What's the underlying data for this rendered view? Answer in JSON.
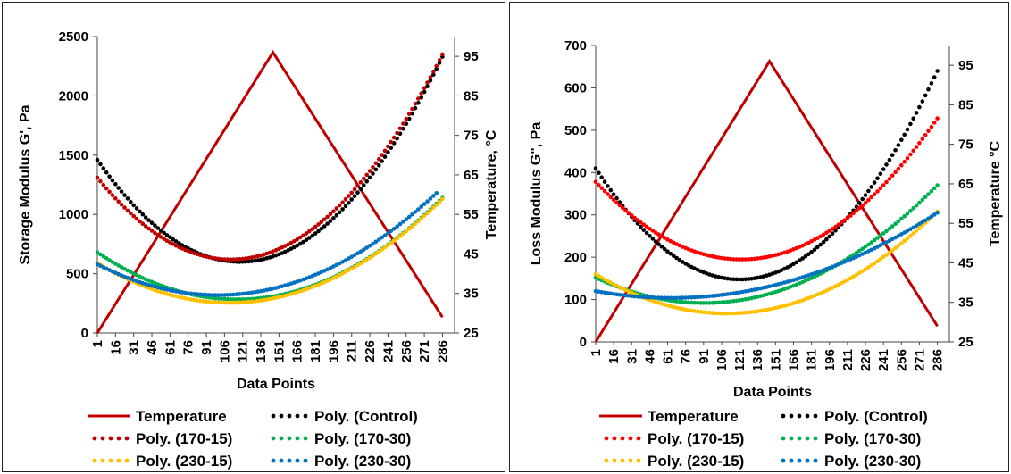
{
  "chart_data": [
    {
      "type": "line",
      "xlabel": "Data Points",
      "ylabel": "Storage Modulus G', Pa",
      "y2label": "Temperature, °C",
      "ylim": [
        0,
        2500
      ],
      "yticks": [
        0,
        500,
        1000,
        1500,
        2000,
        2500
      ],
      "y2lim": [
        25,
        100
      ],
      "y2ticks": [
        25,
        35,
        45,
        55,
        65,
        75,
        85,
        95
      ],
      "xlim": [
        1,
        296
      ],
      "xticks": [
        1,
        16,
        31,
        46,
        61,
        76,
        91,
        106,
        121,
        136,
        151,
        166,
        181,
        196,
        211,
        226,
        241,
        256,
        271,
        286
      ],
      "legend": "bottom",
      "series": [
        {
          "name": "Temperature",
          "axis": "right",
          "style": "solid",
          "color": "#C00000",
          "points": [
            [
              1,
              25
            ],
            [
              146,
              96
            ],
            [
              286,
              29
            ]
          ]
        },
        {
          "name": "Poly. (Control)",
          "axis": "left",
          "style": "dotted",
          "color": "#000000",
          "points": [
            [
              1,
              1460
            ],
            [
              121,
              600
            ],
            [
              286,
              2330
            ]
          ]
        },
        {
          "name": "Poly. (170-15)",
          "axis": "left",
          "style": "dotted",
          "color": "#C00000",
          "points": [
            [
              1,
              1310
            ],
            [
              111,
              620
            ],
            [
              286,
              2350
            ]
          ]
        },
        {
          "name": "Poly. (170-30)",
          "axis": "left",
          "style": "dotted",
          "color": "#00B050",
          "points": [
            [
              1,
              680
            ],
            [
              101,
              290
            ],
            [
              286,
              1140
            ]
          ]
        },
        {
          "name": "Poly. (230-15)",
          "axis": "left",
          "style": "dotted",
          "color": "#FFC000",
          "points": [
            [
              1,
              590
            ],
            [
              106,
              255
            ],
            [
              286,
              1130
            ]
          ]
        },
        {
          "name": "Poly. (230-30)",
          "axis": "left",
          "style": "dotted",
          "color": "#0070C0",
          "points": [
            [
              1,
              580
            ],
            [
              96,
              320
            ],
            [
              281,
              1180
            ]
          ]
        }
      ]
    },
    {
      "type": "line",
      "xlabel": "Data Points",
      "ylabel": "Loss Modulus G\", Pa",
      "y2label": "Temperature °C",
      "ylim": [
        0,
        700
      ],
      "yticks": [
        0,
        100,
        200,
        300,
        400,
        500,
        600,
        700
      ],
      "y2lim": [
        25,
        100
      ],
      "y2ticks": [
        25,
        35,
        45,
        55,
        65,
        75,
        85,
        95
      ],
      "xlim": [
        1,
        296
      ],
      "xticks": [
        1,
        16,
        31,
        46,
        61,
        76,
        91,
        106,
        121,
        136,
        151,
        166,
        181,
        196,
        211,
        226,
        241,
        256,
        271,
        286
      ],
      "legend": "bottom",
      "series": [
        {
          "name": "Temperature",
          "axis": "right",
          "style": "solid",
          "color": "#C00000",
          "points": [
            [
              1,
              25
            ],
            [
              146,
              96
            ],
            [
              286,
              29
            ]
          ]
        },
        {
          "name": "Poly. (Control)",
          "axis": "left",
          "style": "dotted",
          "color": "#000000",
          "points": [
            [
              1,
              410
            ],
            [
              126,
              148
            ],
            [
              286,
              640
            ]
          ]
        },
        {
          "name": "Poly. (170-15)",
          "axis": "left",
          "style": "dotted",
          "color": "#FF0000",
          "points": [
            [
              1,
              378
            ],
            [
              126,
              195
            ],
            [
              286,
              528
            ]
          ]
        },
        {
          "name": "Poly. (170-30)",
          "axis": "left",
          "style": "dotted",
          "color": "#00B050",
          "points": [
            [
              1,
              152
            ],
            [
              96,
              92
            ],
            [
              286,
              370
            ]
          ]
        },
        {
          "name": "Poly. (230-15)",
          "axis": "left",
          "style": "dotted",
          "color": "#FFC000",
          "points": [
            [
              1,
              160
            ],
            [
              121,
              68
            ],
            [
              286,
              308
            ]
          ]
        },
        {
          "name": "Poly. (230-30)",
          "axis": "left",
          "style": "dotted",
          "color": "#0070C0",
          "points": [
            [
              1,
              120
            ],
            [
              56,
              104
            ],
            [
              286,
              305
            ]
          ]
        }
      ]
    }
  ]
}
